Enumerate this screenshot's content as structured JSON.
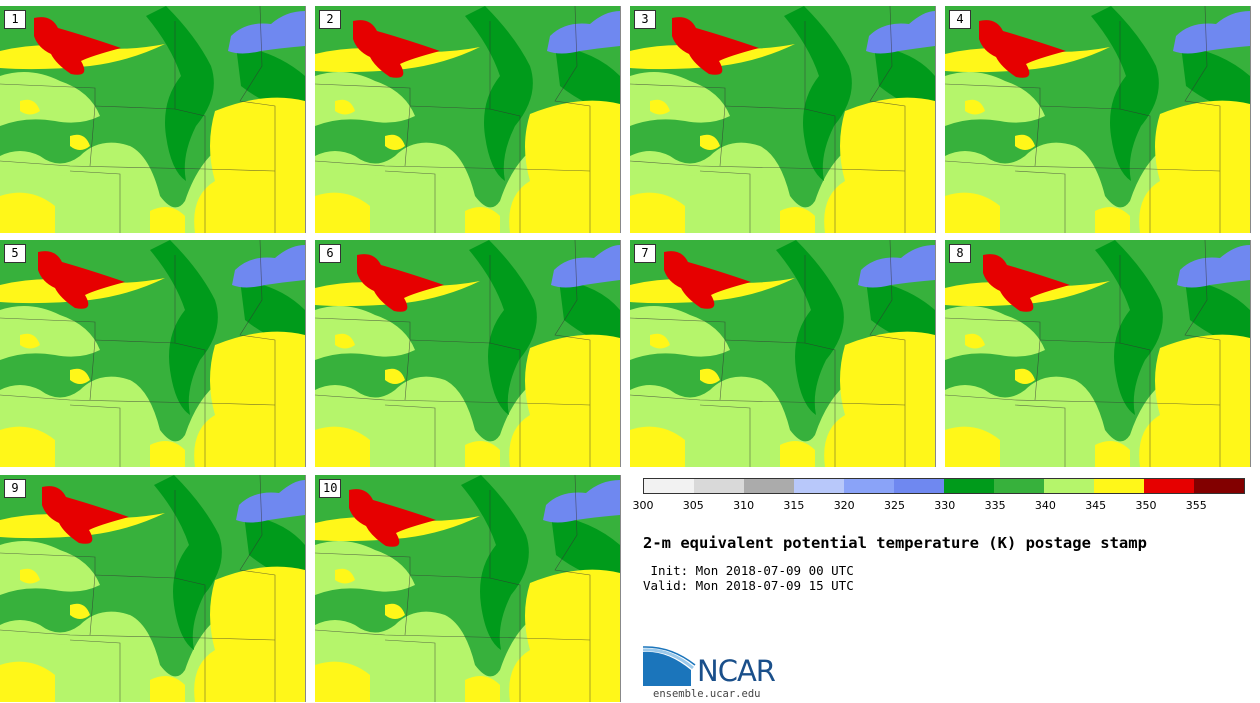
{
  "panels": [
    {
      "label": "1"
    },
    {
      "label": "2"
    },
    {
      "label": "3"
    },
    {
      "label": "4"
    },
    {
      "label": "5"
    },
    {
      "label": "6"
    },
    {
      "label": "7"
    },
    {
      "label": "8"
    },
    {
      "label": "9"
    },
    {
      "label": "10"
    }
  ],
  "colorbar": {
    "colors": [
      "#f2f2f2",
      "#d9d9d9",
      "#ababab",
      "#b8c8fa",
      "#8aa3f8",
      "#6f88f0",
      "#009b1b",
      "#37b13c",
      "#b5f56b",
      "#fff719",
      "#e60000",
      "#820000"
    ],
    "ticks": [
      "300",
      "305",
      "310",
      "315",
      "320",
      "325",
      "330",
      "335",
      "340",
      "345",
      "350",
      "355"
    ]
  },
  "title": "2-m equivalent potential temperature (K) postage stamp",
  "init": " Init: Mon 2018-07-09 00 UTC",
  "valid": "Valid: Mon 2018-07-09 15 UTC",
  "logo": {
    "text": "NCAR",
    "site": "ensemble.ucar.edu"
  }
}
